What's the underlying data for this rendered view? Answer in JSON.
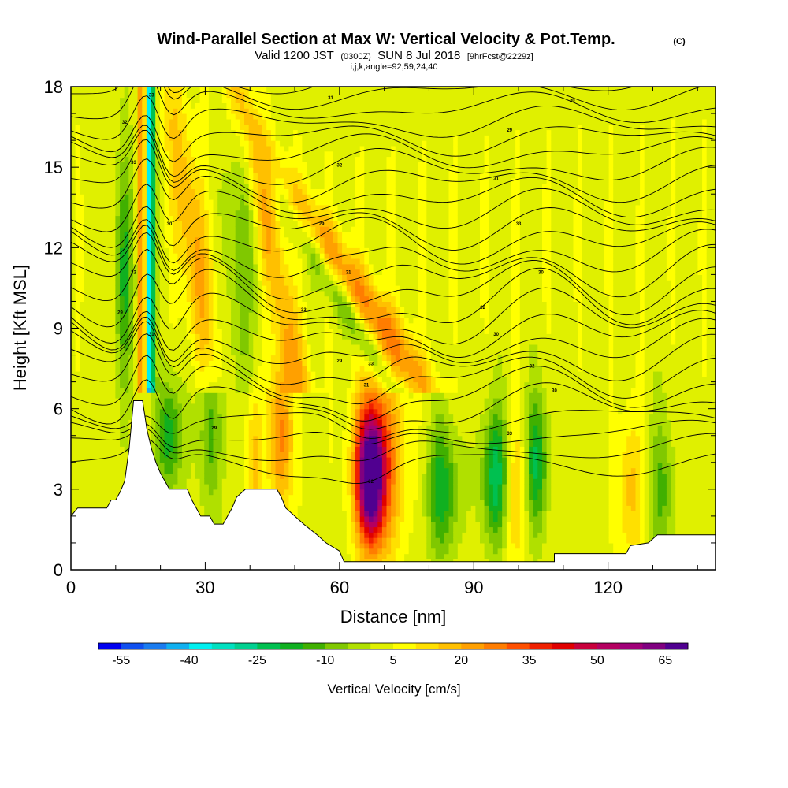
{
  "chart_data": {
    "type": "heatmap",
    "title": "Wind-Parallel Section at Max W: Vertical Velocity & Pot.Temp.",
    "title_mark": "(C)",
    "subtitle": {
      "valid": "Valid 1200 JST",
      "utc": "(0300Z)",
      "date": "SUN 8 Jul 2018",
      "forecast": "[9hrFcst@2229z]"
    },
    "parameters": "i,j,k,angle=92,59,24,40",
    "xlabel": "Distance [nm]",
    "ylabel": "Height [Kft MSL]",
    "x_ticks": [
      0,
      30,
      60,
      90,
      120
    ],
    "y_ticks": [
      0,
      3,
      6,
      9,
      12,
      15,
      18
    ],
    "xlim": [
      0,
      144
    ],
    "ylim": [
      0,
      18
    ],
    "colorbar": {
      "label": "Vertical Velocity [cm/s]",
      "tick_labels": [
        -55,
        -40,
        -25,
        -10,
        5,
        20,
        35,
        50,
        65
      ],
      "bounds": [
        -60,
        70
      ],
      "step": 5,
      "colors": [
        "#0000f0",
        "#1050f0",
        "#1a7cf0",
        "#10b0f0",
        "#00f0f0",
        "#00e0c0",
        "#00d090",
        "#00c050",
        "#10b020",
        "#40b000",
        "#80c800",
        "#b0e000",
        "#e0f000",
        "#ffff00",
        "#ffe000",
        "#ffc000",
        "#ffa000",
        "#ff7d00",
        "#ff5000",
        "#f02000",
        "#e00000",
        "#c8003c",
        "#b40060",
        "#a00078",
        "#800080",
        "#500090"
      ]
    },
    "isentrope_labels": [
      "33",
      "32",
      "31",
      "30",
      "29"
    ],
    "terrain_profile": [
      [
        0,
        2.0
      ],
      [
        1.5,
        2.3
      ],
      [
        8,
        2.3
      ],
      [
        9,
        2.6
      ],
      [
        10,
        2.6
      ],
      [
        11,
        2.9
      ],
      [
        12,
        3.3
      ],
      [
        13,
        4.5
      ],
      [
        14,
        6.3
      ],
      [
        16,
        6.3
      ],
      [
        17,
        5.2
      ],
      [
        18,
        4.5
      ],
      [
        19,
        4.0
      ],
      [
        20,
        3.6
      ],
      [
        21,
        3.3
      ],
      [
        22,
        3.0
      ],
      [
        26,
        3.0
      ],
      [
        27,
        2.6
      ],
      [
        28,
        2.3
      ],
      [
        29,
        2.0
      ],
      [
        31,
        2.0
      ],
      [
        32,
        1.7
      ],
      [
        34,
        1.7
      ],
      [
        35,
        2.0
      ],
      [
        36,
        2.3
      ],
      [
        37,
        2.7
      ],
      [
        39,
        3.0
      ],
      [
        46,
        3.0
      ],
      [
        47,
        2.7
      ],
      [
        48,
        2.3
      ],
      [
        50,
        2.0
      ],
      [
        52,
        1.7
      ],
      [
        55,
        1.3
      ],
      [
        57,
        1.0
      ],
      [
        60,
        0.7
      ],
      [
        61,
        0.3
      ],
      [
        108,
        0.3
      ],
      [
        108,
        0.6
      ],
      [
        124,
        0.6
      ],
      [
        125,
        0.9
      ],
      [
        129,
        1.0
      ],
      [
        131,
        1.3
      ],
      [
        144,
        1.3
      ]
    ]
  }
}
